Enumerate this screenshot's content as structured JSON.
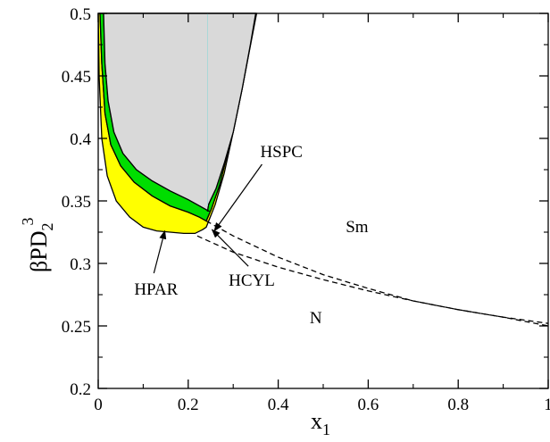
{
  "chart_data": {
    "type": "area",
    "title": "",
    "xlabel": "x",
    "xlabel_sub": "1",
    "ylabel": "βPD",
    "ylabel_sub": "2",
    "ylabel_sup": "3",
    "xlim": [
      0,
      1
    ],
    "ylim": [
      0.2,
      0.5
    ],
    "xticks": [
      0,
      0.2,
      0.4,
      0.6,
      0.8,
      1
    ],
    "xtick_labels": [
      "0",
      "0.2",
      "0.4",
      "0.6",
      "0.8",
      "1"
    ],
    "yticks": [
      0.2,
      0.25,
      0.3,
      0.35,
      0.4,
      0.45,
      0.5
    ],
    "ytick_labels": [
      "0.2",
      "0.25",
      "0.3",
      "0.35",
      "0.4",
      "0.45",
      "0.5"
    ],
    "grid": false,
    "colors": {
      "gray_region": "#d9d9d9",
      "green_band": "#00dd00",
      "yellow_band": "#ffff00",
      "line": "#000000",
      "vertical_line": "#a8d8d8"
    },
    "regions": {
      "gray": {
        "left": [
          [
            0.012,
            0.5
          ],
          [
            0.015,
            0.46
          ],
          [
            0.022,
            0.43
          ],
          [
            0.035,
            0.405
          ],
          [
            0.055,
            0.388
          ],
          [
            0.085,
            0.375
          ],
          [
            0.12,
            0.366
          ],
          [
            0.16,
            0.358
          ],
          [
            0.2,
            0.351
          ],
          [
            0.225,
            0.346
          ],
          [
            0.245,
            0.342
          ]
        ],
        "right": [
          [
            0.243,
            0.342
          ],
          [
            0.245,
            0.347
          ],
          [
            0.25,
            0.351
          ],
          [
            0.262,
            0.36
          ],
          [
            0.28,
            0.38
          ],
          [
            0.3,
            0.405
          ],
          [
            0.32,
            0.44
          ],
          [
            0.338,
            0.475
          ],
          [
            0.35,
            0.5
          ]
        ]
      },
      "green": {
        "outer_left": [
          [
            0.004,
            0.5
          ],
          [
            0.008,
            0.46
          ],
          [
            0.015,
            0.42
          ],
          [
            0.028,
            0.395
          ],
          [
            0.05,
            0.378
          ],
          [
            0.08,
            0.365
          ],
          [
            0.12,
            0.354
          ],
          [
            0.16,
            0.346
          ],
          [
            0.2,
            0.341
          ],
          [
            0.225,
            0.337
          ],
          [
            0.24,
            0.334
          ]
        ],
        "outer_right": [
          [
            0.24,
            0.334
          ],
          [
            0.252,
            0.344
          ],
          [
            0.27,
            0.363
          ],
          [
            0.29,
            0.392
          ],
          [
            0.31,
            0.425
          ],
          [
            0.33,
            0.462
          ],
          [
            0.348,
            0.5
          ]
        ]
      },
      "yellow": {
        "outer_left": [
          [
            0.0,
            0.5
          ],
          [
            0.002,
            0.45
          ],
          [
            0.008,
            0.4
          ],
          [
            0.02,
            0.37
          ],
          [
            0.04,
            0.35
          ],
          [
            0.07,
            0.337
          ],
          [
            0.1,
            0.329
          ],
          [
            0.13,
            0.326
          ],
          [
            0.16,
            0.325
          ],
          [
            0.19,
            0.324
          ],
          [
            0.215,
            0.324
          ],
          [
            0.232,
            0.327
          ],
          [
            0.24,
            0.329
          ]
        ],
        "outer_right": [
          [
            0.24,
            0.329
          ],
          [
            0.26,
            0.347
          ],
          [
            0.28,
            0.372
          ],
          [
            0.3,
            0.405
          ],
          [
            0.32,
            0.44
          ],
          [
            0.338,
            0.474
          ],
          [
            0.352,
            0.5
          ]
        ]
      }
    },
    "dashed_lines": [
      {
        "name": "HSPC",
        "points": [
          [
            0.24,
            0.334
          ],
          [
            0.3,
            0.322
          ],
          [
            0.4,
            0.305
          ],
          [
            0.5,
            0.291
          ],
          [
            0.6,
            0.28
          ],
          [
            0.7,
            0.27
          ],
          [
            0.8,
            0.263
          ],
          [
            0.9,
            0.257
          ],
          [
            1.0,
            0.252
          ]
        ]
      },
      {
        "name": "HCYL",
        "points": [
          [
            0.22,
            0.322
          ],
          [
            0.3,
            0.309
          ],
          [
            0.4,
            0.297
          ],
          [
            0.5,
            0.287
          ],
          [
            0.6,
            0.278
          ],
          [
            0.7,
            0.27
          ],
          [
            0.8,
            0.263
          ],
          [
            0.9,
            0.257
          ],
          [
            1.0,
            0.25
          ]
        ]
      }
    ],
    "annotations": [
      {
        "name": "region-label-sm",
        "text": "Sm",
        "at": [
          0.55,
          0.325
        ]
      },
      {
        "name": "region-label-n",
        "text": "N",
        "at": [
          0.47,
          0.252
        ]
      },
      {
        "name": "label-hspc",
        "text": "HSPC",
        "at": [
          0.36,
          0.385
        ],
        "arrow_to": [
          0.258,
          0.326
        ]
      },
      {
        "name": "label-hcyl",
        "text": "HCYL",
        "at": [
          0.29,
          0.282
        ],
        "arrow_to": [
          0.253,
          0.327
        ]
      },
      {
        "name": "label-hpar",
        "text": "HPAR",
        "at": [
          0.08,
          0.275
        ],
        "arrow_to": [
          0.148,
          0.326
        ]
      }
    ],
    "vertical_line_x": 0.243
  }
}
